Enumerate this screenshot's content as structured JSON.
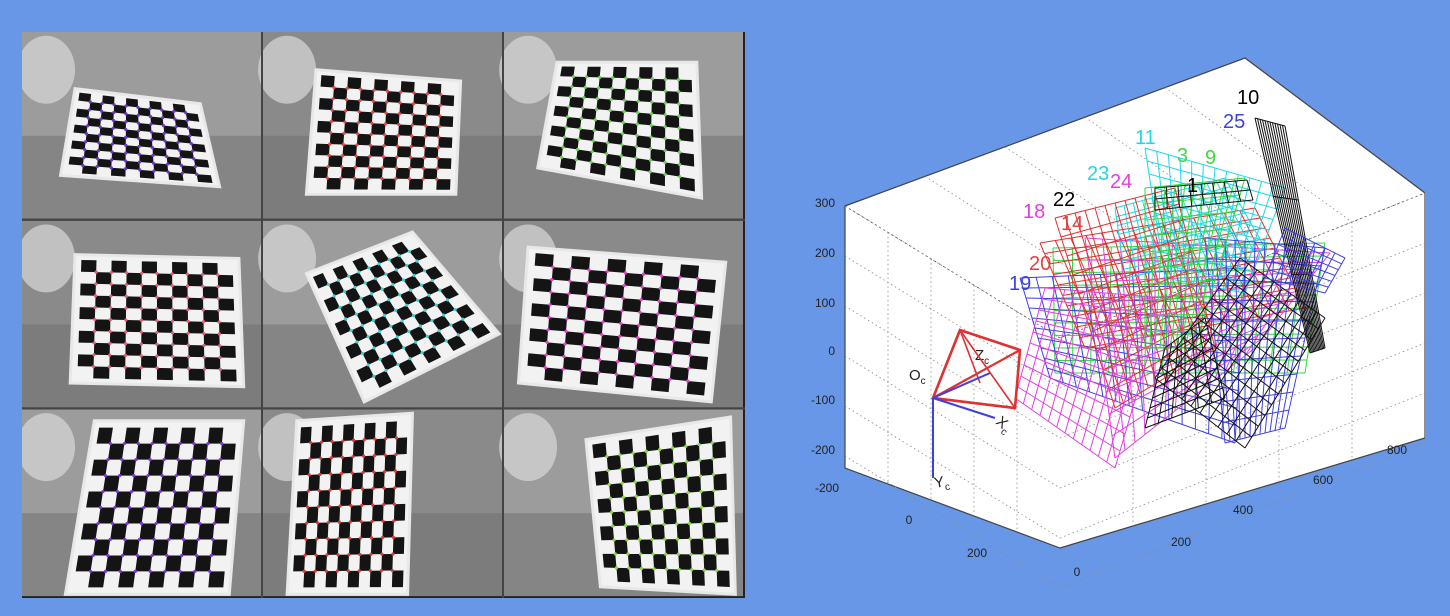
{
  "calibration_images": {
    "count": 9,
    "checker_colors": [
      "#6b38c8",
      "#e04848",
      "#6fcf5a",
      "#e0607a",
      "#3fd0d0",
      "#e840c8",
      "#7a38d8",
      "#e03838",
      "#8ad840"
    ]
  },
  "extrinsics_plot": {
    "axis_ticks": {
      "vertical": [
        "300",
        "200",
        "100",
        "0",
        "-100",
        "-200"
      ],
      "depth": [
        "-200",
        "0",
        "200"
      ],
      "horizontal": [
        "0",
        "200",
        "400",
        "600",
        "800"
      ]
    },
    "camera_labels": {
      "origin": "O",
      "origin_sub": "c",
      "z": "Z",
      "z_sub": "c",
      "x": "X",
      "x_sub": "c",
      "y": "Y",
      "y_sub": "c"
    },
    "pattern_labels": [
      {
        "text": "10",
        "color": "#000000"
      },
      {
        "text": "25",
        "color": "#4040e0"
      },
      {
        "text": "11",
        "color": "#20d8e8"
      },
      {
        "text": "3",
        "color": "#40d840"
      },
      {
        "text": "9",
        "color": "#40d840"
      },
      {
        "text": "23",
        "color": "#20d8e8"
      },
      {
        "text": "24",
        "color": "#e040e0"
      },
      {
        "text": "22",
        "color": "#000000"
      },
      {
        "text": "1",
        "color": "#000000"
      },
      {
        "text": "18",
        "color": "#e040e0"
      },
      {
        "text": "14",
        "color": "#e04040"
      },
      {
        "text": "20",
        "color": "#e04040"
      },
      {
        "text": "19",
        "color": "#4040e0"
      }
    ],
    "colors": {
      "blue": "#4040e0",
      "red": "#e03030",
      "green": "#30d840",
      "magenta": "#e040e0",
      "cyan": "#20d8e8",
      "black": "#111111"
    }
  }
}
